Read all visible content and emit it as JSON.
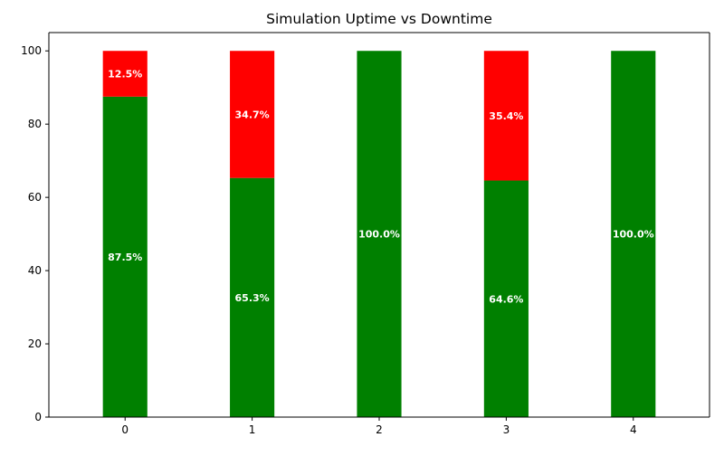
{
  "chart_data": {
    "type": "bar",
    "stacked": true,
    "title": "Simulation Uptime vs Downtime",
    "xlabel": "",
    "ylabel": "",
    "categories": [
      "0",
      "1",
      "2",
      "3",
      "4"
    ],
    "ylim": [
      0,
      105
    ],
    "yticks": [
      0,
      20,
      40,
      60,
      80,
      100
    ],
    "grid": false,
    "series": [
      {
        "values": [
          87.5,
          65.3,
          100.0,
          64.6,
          100.0
        ],
        "labels": [
          "87.5%",
          "65.3%",
          "100.0%",
          "64.6%",
          "100.0%"
        ],
        "color": "#008000"
      },
      {
        "values": [
          12.5,
          34.7,
          0.0,
          35.4,
          0.0
        ],
        "labels": [
          "12.5%",
          "34.7%",
          "",
          "35.4%",
          ""
        ],
        "color": "#ff0000"
      }
    ]
  }
}
